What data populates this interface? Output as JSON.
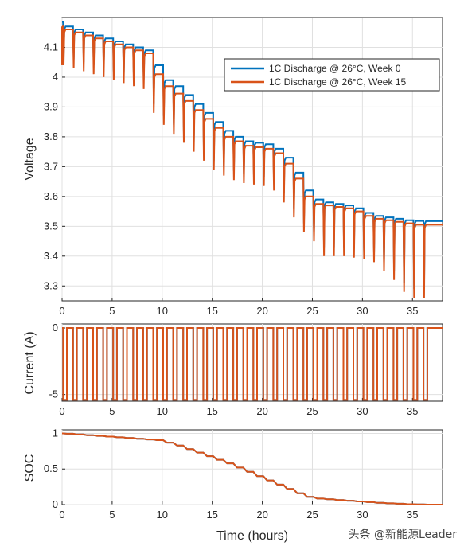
{
  "chart_data": [
    {
      "type": "line",
      "panel": "voltage",
      "ylabel": "Voltage",
      "xlabel": "",
      "xlim": [
        0,
        38
      ],
      "ylim": [
        3.25,
        4.2
      ],
      "xticks": [
        "0",
        "5",
        "10",
        "15",
        "20",
        "25",
        "30",
        "35"
      ],
      "yticks": [
        "3.3",
        "3.4",
        "3.5",
        "3.6",
        "3.7",
        "3.8",
        "3.9",
        "4",
        "4.1"
      ],
      "grid": true,
      "legend_position": "top-right",
      "pulse_times": [
        0.1,
        1.1,
        2.1,
        3.1,
        4.1,
        5.1,
        6.1,
        7.1,
        8.1,
        9.1,
        10.1,
        11.1,
        12.1,
        13.1,
        14.1,
        15.1,
        16.1,
        17.1,
        18.1,
        19.1,
        20.1,
        21.1,
        22.1,
        23.1,
        24.1,
        25.1,
        26.1,
        27.1,
        28.1,
        29.1,
        30.1,
        31.1,
        32.1,
        33.1,
        34.1,
        35.1,
        36.1
      ],
      "series": [
        {
          "name": "1C Discharge @ 26°C, Week 0",
          "color": "#0072BD",
          "start_voltage": 4.185,
          "rest_voltage": [
            4.17,
            4.16,
            4.15,
            4.14,
            4.13,
            4.12,
            4.11,
            4.1,
            4.09,
            4.04,
            3.99,
            3.97,
            3.94,
            3.91,
            3.88,
            3.85,
            3.82,
            3.8,
            3.785,
            3.78,
            3.775,
            3.76,
            3.73,
            3.68,
            3.62,
            3.59,
            3.58,
            3.575,
            3.57,
            3.56,
            3.545,
            3.535,
            3.53,
            3.525,
            3.52,
            3.518,
            3.517
          ],
          "end_voltage": 3.517
        },
        {
          "name": "1C Discharge @ 26°C, Week 15",
          "color": "#D95319",
          "start_voltage": 4.17,
          "rest_voltage": [
            4.16,
            4.15,
            4.14,
            4.13,
            4.12,
            4.11,
            4.1,
            4.09,
            4.08,
            4.01,
            3.97,
            3.945,
            3.92,
            3.89,
            3.86,
            3.83,
            3.8,
            3.785,
            3.77,
            3.765,
            3.76,
            3.745,
            3.71,
            3.66,
            3.6,
            3.575,
            3.57,
            3.565,
            3.56,
            3.55,
            3.535,
            3.525,
            3.52,
            3.515,
            3.51,
            3.505,
            3.505
          ],
          "pulse_dip": [
            4.04,
            4.03,
            4.02,
            4.01,
            4.0,
            3.99,
            3.98,
            3.97,
            3.96,
            3.88,
            3.84,
            3.81,
            3.78,
            3.75,
            3.72,
            3.69,
            3.67,
            3.655,
            3.645,
            3.64,
            3.635,
            3.62,
            3.58,
            3.53,
            3.48,
            3.45,
            3.4,
            3.4,
            3.4,
            3.395,
            3.39,
            3.38,
            3.35,
            3.32,
            3.28,
            3.26,
            3.26
          ],
          "end_voltage": 3.505
        }
      ]
    },
    {
      "type": "line",
      "panel": "current",
      "ylabel": "Current (A)",
      "xlabel": "",
      "xlim": [
        0,
        38
      ],
      "ylim": [
        -5.5,
        0.3
      ],
      "xticks": [
        "0",
        "5",
        "10",
        "15",
        "20",
        "25",
        "30",
        "35"
      ],
      "yticks": [
        "-5",
        "0"
      ],
      "grid": true,
      "rest_current": 0,
      "pulse_current": -5.4,
      "pulse_width_hours": 0.38
    },
    {
      "type": "line",
      "panel": "soc",
      "ylabel": "SOC",
      "xlabel": "Time (hours)",
      "xlim": [
        0,
        38
      ],
      "ylim": [
        0,
        1.05
      ],
      "xticks": [
        "0",
        "5",
        "10",
        "15",
        "20",
        "25",
        "30",
        "35"
      ],
      "yticks": [
        "0",
        "0.5",
        "1"
      ],
      "grid": true,
      "soc_after_step": [
        0.995,
        0.985,
        0.975,
        0.965,
        0.955,
        0.945,
        0.935,
        0.925,
        0.915,
        0.905,
        0.87,
        0.83,
        0.78,
        0.73,
        0.68,
        0.63,
        0.58,
        0.52,
        0.46,
        0.4,
        0.34,
        0.28,
        0.22,
        0.16,
        0.11,
        0.085,
        0.075,
        0.065,
        0.055,
        0.045,
        0.035,
        0.025,
        0.018,
        0.012,
        0.006,
        0.002,
        0.0
      ]
    }
  ],
  "watermark": "头条 @新能源Leader"
}
